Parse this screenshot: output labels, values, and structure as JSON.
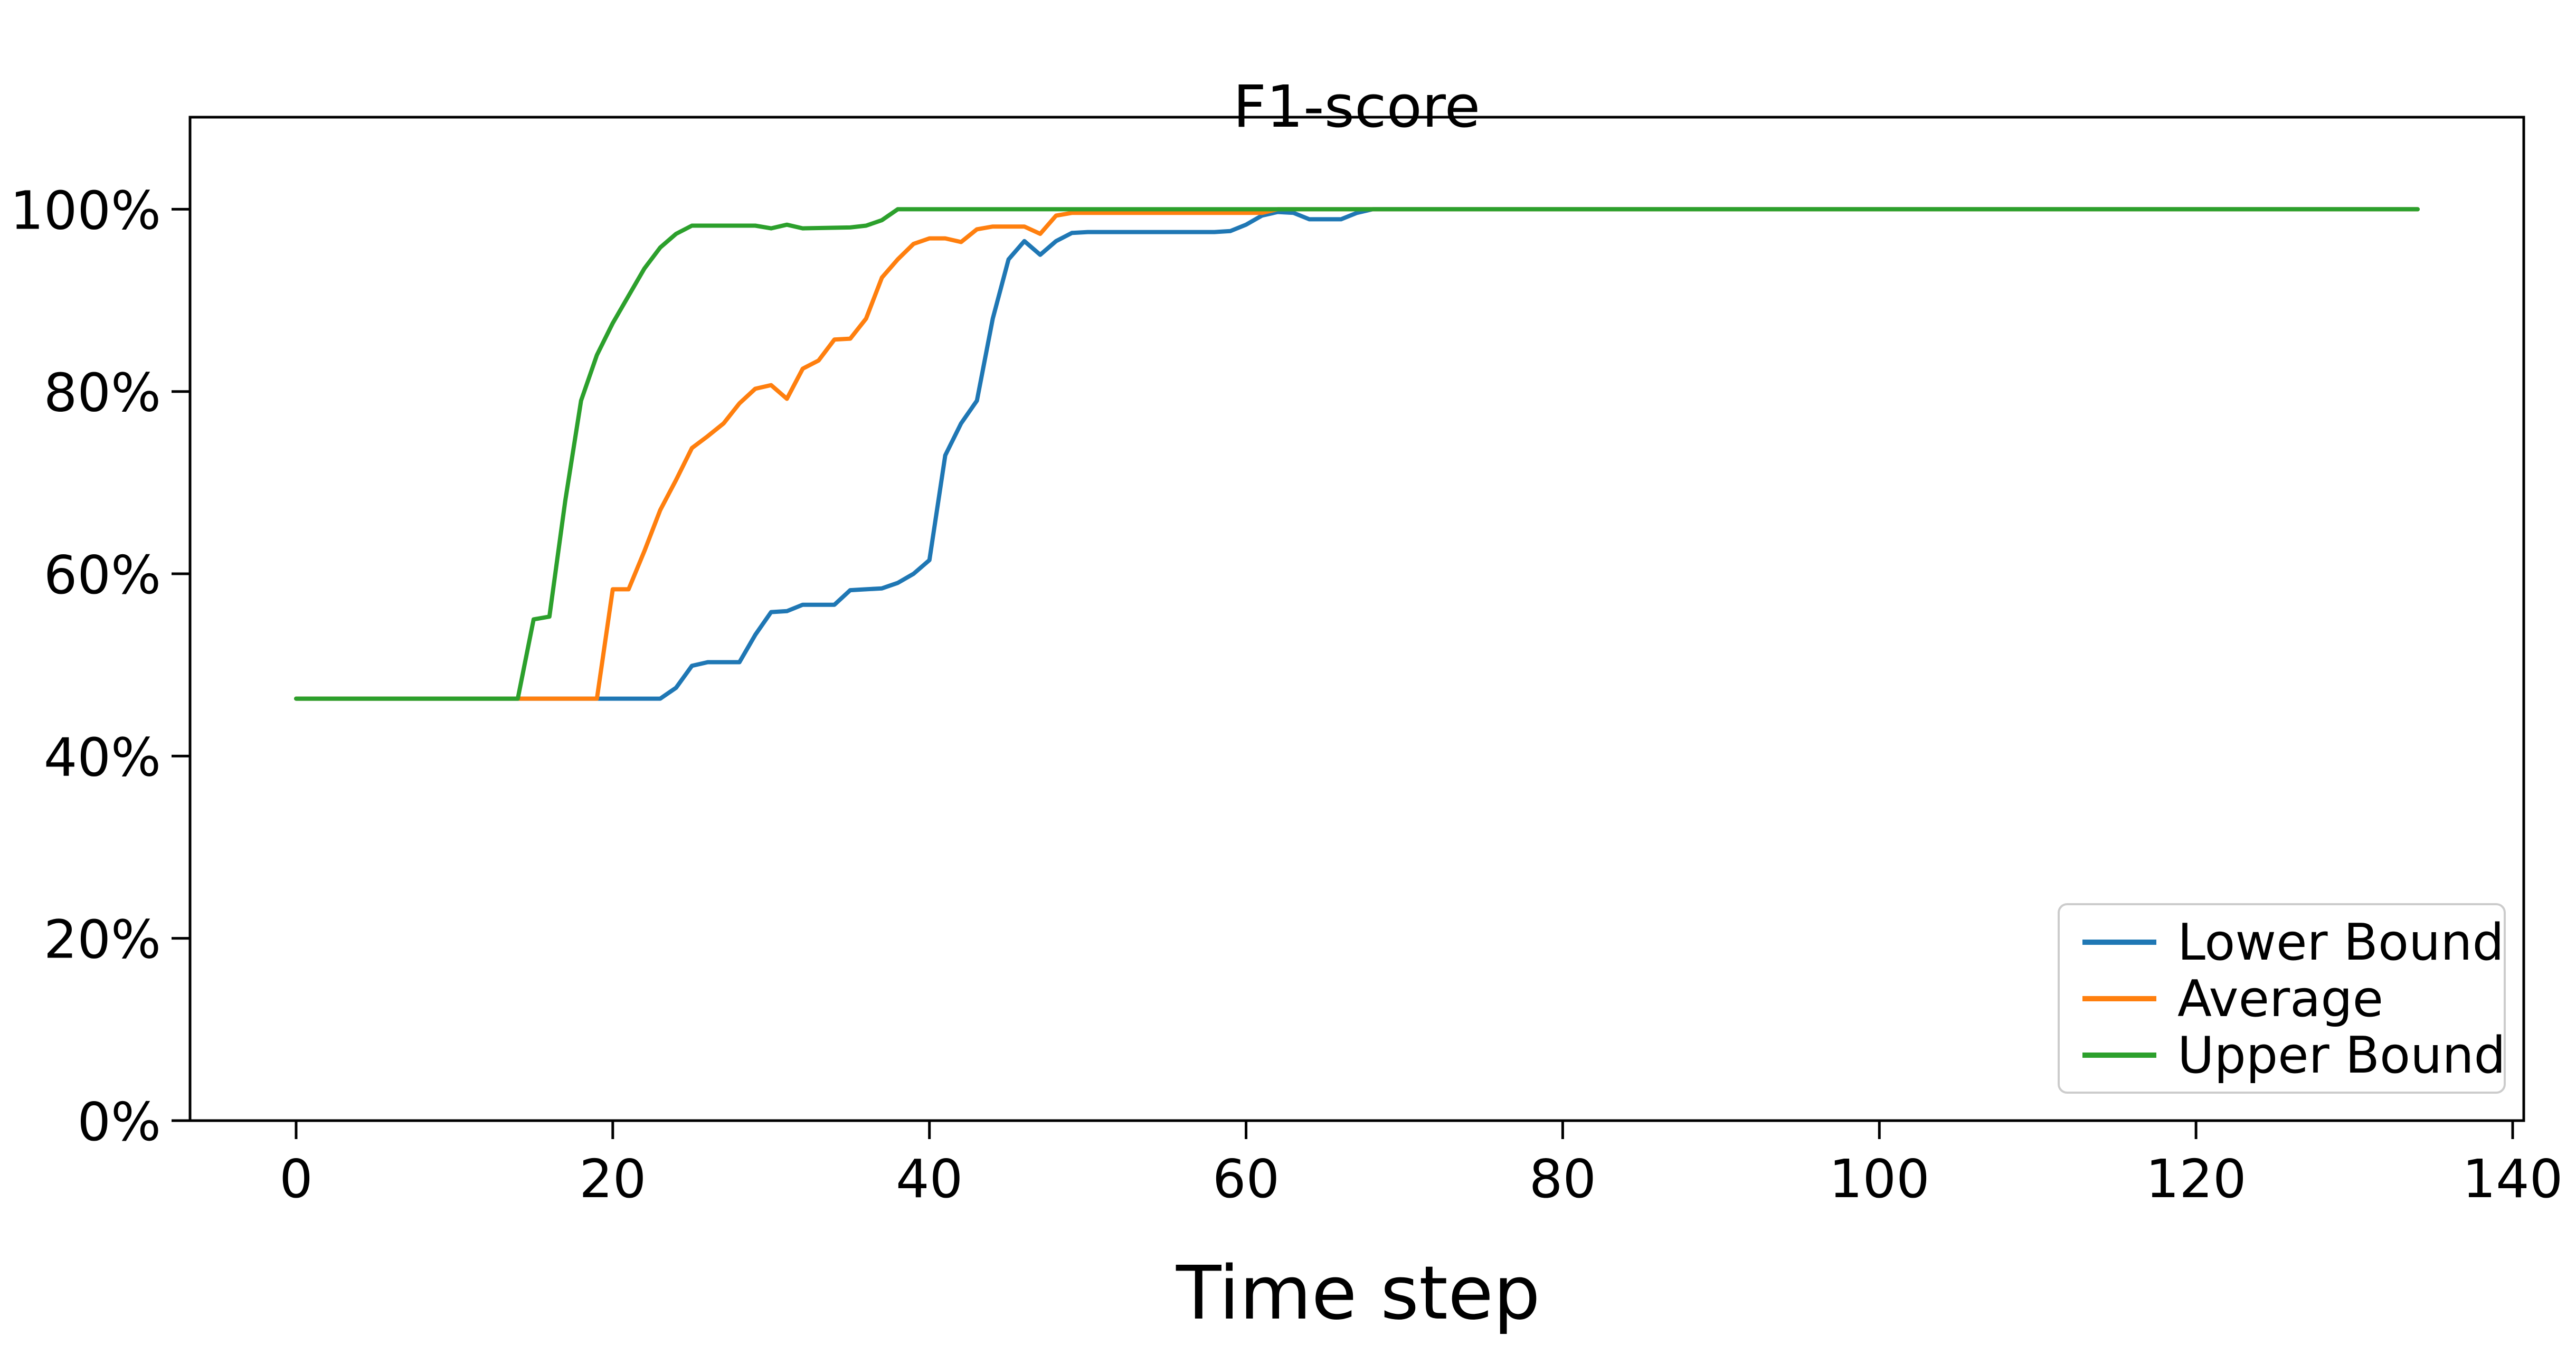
{
  "chart_data": {
    "type": "line",
    "title": "F1-score",
    "xlabel": "Time step",
    "ylabel": "",
    "grid": false,
    "legend_position": "lower right",
    "xlim": [
      -6.7,
      140.7
    ],
    "ylim": [
      0,
      110.1
    ],
    "x_ticks": [
      0,
      20,
      40,
      60,
      80,
      100,
      120,
      140
    ],
    "y_ticks": [
      {
        "value": 0,
        "label": "0%"
      },
      {
        "value": 20,
        "label": "20%"
      },
      {
        "value": 40,
        "label": "40%"
      },
      {
        "value": 60,
        "label": "60%"
      },
      {
        "value": 80,
        "label": "80%"
      },
      {
        "value": 100,
        "label": "100%"
      }
    ],
    "axis_color": "#000000",
    "text_color": "#000000",
    "series": [
      {
        "name": "Lower Bound",
        "color": "#1f77b4",
        "points": [
          [
            0,
            46.3
          ],
          [
            23,
            46.3
          ],
          [
            24,
            47.5
          ],
          [
            25,
            49.9
          ],
          [
            26,
            50.3
          ],
          [
            28,
            50.3
          ],
          [
            29,
            53.3
          ],
          [
            30,
            55.8
          ],
          [
            31,
            55.9
          ],
          [
            32,
            56.6
          ],
          [
            34,
            56.6
          ],
          [
            35,
            58.2
          ],
          [
            36,
            58.3
          ],
          [
            37,
            58.4
          ],
          [
            38,
            59.0
          ],
          [
            39,
            60.0
          ],
          [
            40,
            61.5
          ],
          [
            41,
            73.0
          ],
          [
            42,
            76.5
          ],
          [
            43,
            79.0
          ],
          [
            44,
            88.0
          ],
          [
            45,
            94.5
          ],
          [
            46,
            96.5
          ],
          [
            47,
            95.0
          ],
          [
            48,
            96.5
          ],
          [
            49,
            97.4
          ],
          [
            50,
            97.5
          ],
          [
            58,
            97.5
          ],
          [
            59,
            97.6
          ],
          [
            60,
            98.3
          ],
          [
            61,
            99.3
          ],
          [
            62,
            99.7
          ],
          [
            63,
            99.6
          ],
          [
            64,
            98.9
          ],
          [
            66,
            98.9
          ],
          [
            67,
            99.6
          ],
          [
            68,
            100
          ],
          [
            134,
            100
          ]
        ]
      },
      {
        "name": "Average",
        "color": "#ff7f0e",
        "points": [
          [
            0,
            46.3
          ],
          [
            19,
            46.3
          ],
          [
            20,
            58.3
          ],
          [
            21,
            58.3
          ],
          [
            22,
            62.5
          ],
          [
            23,
            67.0
          ],
          [
            24,
            70.3
          ],
          [
            25,
            73.8
          ],
          [
            26,
            75.1
          ],
          [
            27,
            76.5
          ],
          [
            28,
            78.7
          ],
          [
            29,
            80.3
          ],
          [
            30,
            80.7
          ],
          [
            31,
            79.2
          ],
          [
            32,
            82.5
          ],
          [
            33,
            83.4
          ],
          [
            34,
            85.7
          ],
          [
            35,
            85.8
          ],
          [
            36,
            88.0
          ],
          [
            37,
            92.5
          ],
          [
            38,
            94.5
          ],
          [
            39,
            96.2
          ],
          [
            40,
            96.8
          ],
          [
            41,
            96.8
          ],
          [
            42,
            96.4
          ],
          [
            43,
            97.8
          ],
          [
            44,
            98.1
          ],
          [
            46,
            98.1
          ],
          [
            47,
            97.3
          ],
          [
            48,
            99.3
          ],
          [
            49,
            99.6
          ],
          [
            61,
            99.6
          ],
          [
            62,
            100
          ],
          [
            134,
            100
          ]
        ]
      },
      {
        "name": "Upper Bound",
        "color": "#2ca02c",
        "points": [
          [
            0,
            46.3
          ],
          [
            14,
            46.3
          ],
          [
            15,
            55.0
          ],
          [
            16,
            55.3
          ],
          [
            17,
            68.0
          ],
          [
            18,
            79.0
          ],
          [
            19,
            84.0
          ],
          [
            20,
            87.5
          ],
          [
            21,
            90.5
          ],
          [
            22,
            93.5
          ],
          [
            23,
            95.8
          ],
          [
            24,
            97.3
          ],
          [
            25,
            98.2
          ],
          [
            29,
            98.2
          ],
          [
            30,
            97.9
          ],
          [
            31,
            98.3
          ],
          [
            32,
            97.9
          ],
          [
            35,
            98.0
          ],
          [
            36,
            98.2
          ],
          [
            37,
            98.8
          ],
          [
            38,
            100
          ],
          [
            134,
            100
          ]
        ]
      }
    ]
  }
}
